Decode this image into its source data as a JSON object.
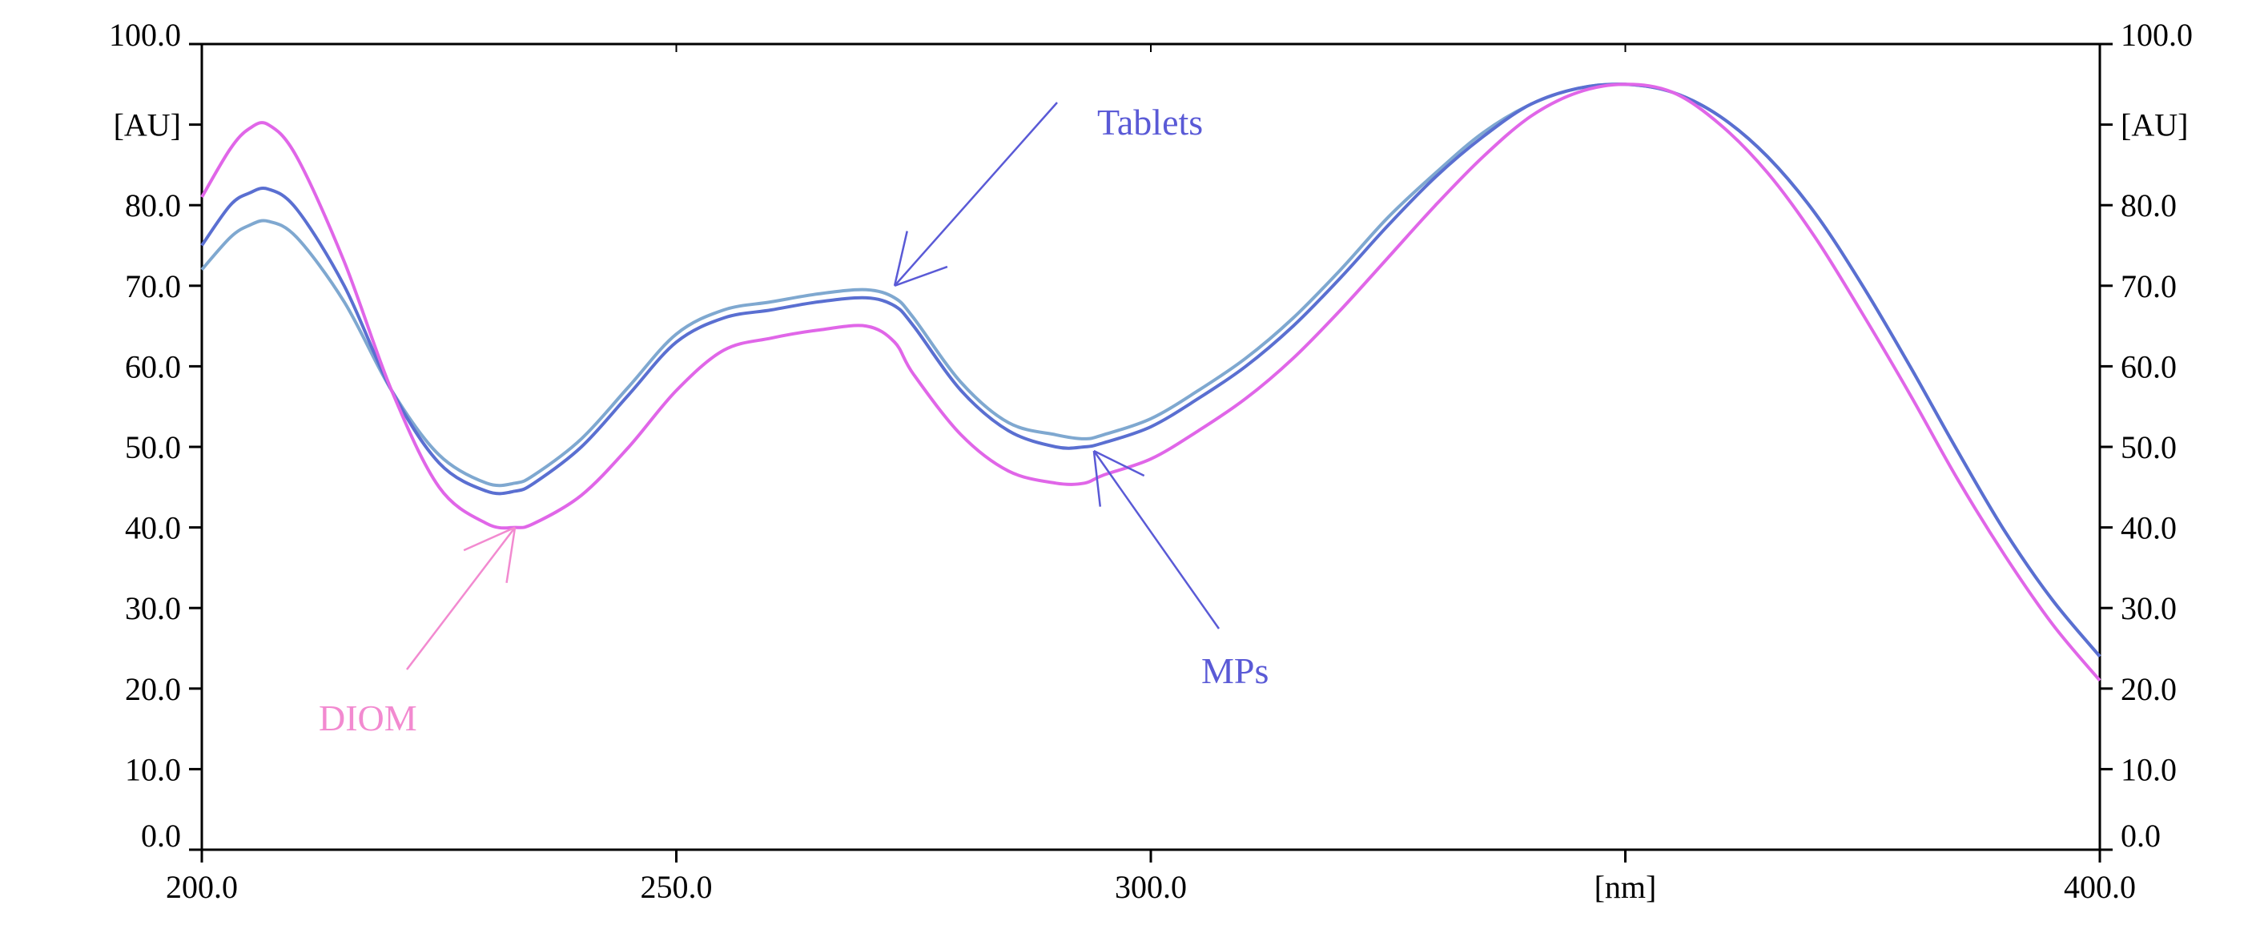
{
  "chart_data": {
    "type": "line",
    "title": "",
    "xlabel": "[nm]",
    "ylabel": "[AU]",
    "ylabel_right": "[AU]",
    "xlim": [
      200,
      400
    ],
    "ylim": [
      0,
      100
    ],
    "x_ticks": [
      "200.0",
      "250.0",
      "300.0",
      "[nm]",
      "400.0"
    ],
    "x_tick_values": [
      200,
      250,
      300,
      350,
      400
    ],
    "y_ticks": [
      "0.0",
      "10.0",
      "20.0",
      "30.0",
      "40.0",
      "50.0",
      "60.0",
      "70.0",
      "80.0",
      "[AU]",
      "100.0"
    ],
    "y_tick_values": [
      0,
      10,
      20,
      30,
      40,
      50,
      60,
      70,
      80,
      90,
      100
    ],
    "grid": false,
    "legend": "none",
    "x": [
      200,
      203,
      205,
      207,
      210,
      215,
      220,
      225,
      230,
      233,
      235,
      240,
      245,
      250,
      255,
      260,
      265,
      270,
      273,
      275,
      280,
      285,
      290,
      293,
      295,
      300,
      305,
      310,
      315,
      320,
      325,
      330,
      335,
      340,
      345,
      350,
      355,
      360,
      365,
      370,
      375,
      380,
      385,
      390,
      395,
      400
    ],
    "series": [
      {
        "name": "Tablets",
        "color": "#7fa8d0",
        "values": [
          72,
          76,
          77.5,
          78,
          76,
          68,
          57,
          49,
          45.5,
          45.5,
          46.5,
          51,
          57.5,
          64,
          67,
          68,
          69,
          69.5,
          68.5,
          66,
          58,
          53,
          51.5,
          51,
          51.5,
          53.5,
          57,
          61,
          66,
          72,
          78.5,
          84,
          89,
          92.5,
          94.5,
          95,
          94,
          91,
          86,
          79,
          70,
          60,
          49.5,
          39.5,
          31,
          24
        ]
      },
      {
        "name": "MPs",
        "color": "#5a6fd1",
        "values": [
          75,
          80,
          81.5,
          82,
          79.5,
          70,
          57,
          48,
          44.5,
          44.5,
          45.5,
          50,
          56.5,
          63,
          66,
          67,
          68,
          68.5,
          67.5,
          65,
          57,
          52,
          50,
          50,
          50.5,
          52.5,
          56,
          60,
          65,
          71,
          77.5,
          83.5,
          88.5,
          92.5,
          94.5,
          95,
          94,
          91,
          86,
          79,
          70,
          60,
          49.5,
          39.5,
          31,
          24
        ]
      },
      {
        "name": "DIOM",
        "color": "#e066e8",
        "values": [
          81,
          87,
          89.5,
          90,
          86,
          73,
          57,
          45,
          40.5,
          40,
          40.5,
          44,
          50,
          57,
          62,
          63.5,
          64.5,
          65,
          63,
          59,
          51.5,
          47,
          45.5,
          45.5,
          46.5,
          48.5,
          52,
          56,
          61,
          67,
          73.5,
          80,
          86,
          91,
          94,
          95,
          94,
          90,
          84,
          76,
          66.5,
          56.5,
          46,
          36.5,
          28,
          21
        ]
      }
    ],
    "annotations": [
      {
        "text": "Tablets",
        "color": "#5a5ad6",
        "target_x": 273,
        "target_y": 70
      },
      {
        "text": "MPs",
        "color": "#5a5ad6",
        "target_x": 294,
        "target_y": 49.5
      },
      {
        "text": "DIOM",
        "color": "#f28ad0",
        "target_x": 233,
        "target_y": 40
      }
    ]
  }
}
